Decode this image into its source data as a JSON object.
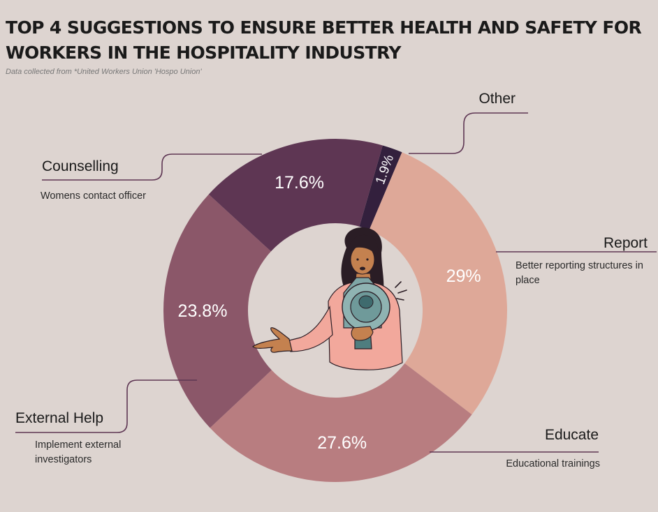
{
  "title": "TOP 4 SUGGESTIONS TO ENSURE BETTER HEALTH AND SAFETY FOR WORKERS IN THE HOSPITALITY INDUSTRY",
  "subtitle": "Data collected from *United Workers Union 'Hospo Union'",
  "chart_data": {
    "type": "pie",
    "donut": true,
    "legend": "none",
    "slices": [
      {
        "label": "Other",
        "description": "",
        "value": 1.9,
        "display": "1.9%",
        "color": "#33203d"
      },
      {
        "label": "Report",
        "description": "Better reporting structures in place",
        "value": 29,
        "display": "29%",
        "color": "#dea898"
      },
      {
        "label": "Educate",
        "description": "Educational trainings",
        "value": 27.6,
        "display": "27.6%",
        "color": "#b87d80"
      },
      {
        "label": "External Help",
        "description": "Implement external investigators",
        "value": 23.8,
        "display": "23.8%",
        "color": "#8b5769"
      },
      {
        "label": "Counselling",
        "description": "Womens contact officer",
        "value": 17.6,
        "display": "17.6%",
        "color": "#5e3653"
      }
    ]
  },
  "center_illustration": "woman-with-megaphone-icon",
  "colors": {
    "background": "#ddd4d0",
    "leader_line": "#5e3653"
  }
}
